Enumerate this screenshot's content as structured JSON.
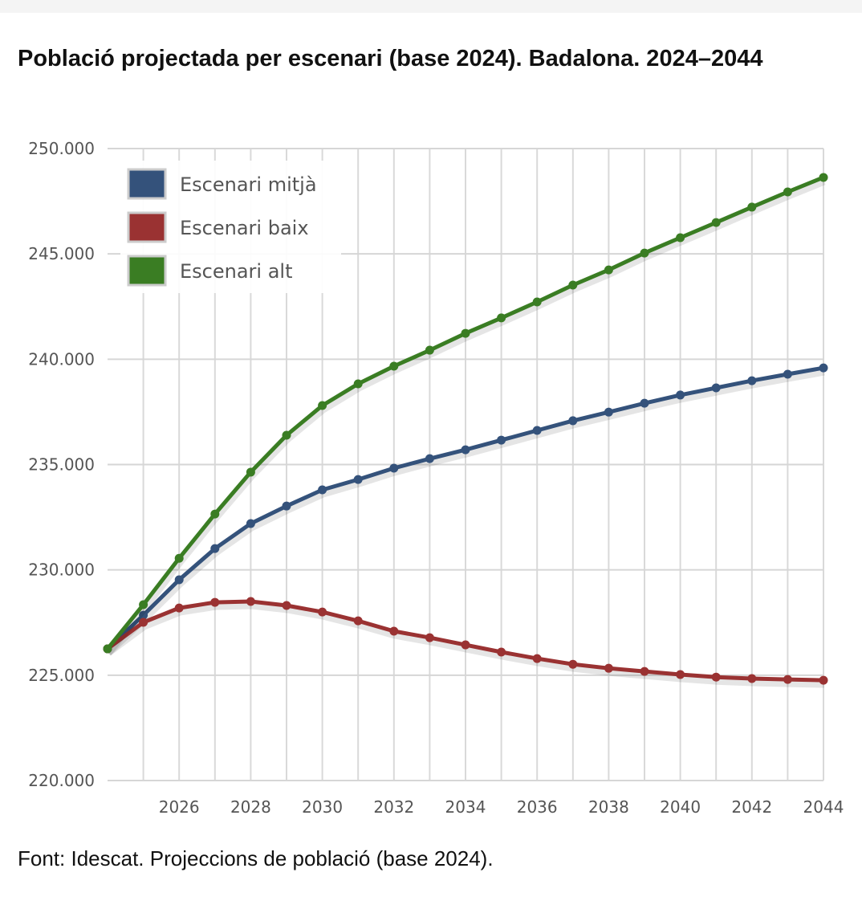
{
  "title": "Població projectada per escenari (base 2024). Badalona. 2024–2044",
  "source": "Font: Idescat. Projeccions de població (base 2024).",
  "chart_data": {
    "type": "line",
    "title": "Població projectada per escenari (base 2024). Badalona. 2024–2044",
    "xlabel": "",
    "ylabel": "",
    "x": [
      2024,
      2025,
      2026,
      2027,
      2028,
      2029,
      2030,
      2031,
      2032,
      2033,
      2034,
      2035,
      2036,
      2037,
      2038,
      2039,
      2040,
      2041,
      2042,
      2043,
      2044
    ],
    "xlim": [
      2024,
      2044
    ],
    "ylim": [
      220000,
      250000
    ],
    "x_ticks": [
      2026,
      2028,
      2030,
      2032,
      2034,
      2036,
      2038,
      2040,
      2042,
      2044
    ],
    "y_ticks": [
      220000,
      225000,
      230000,
      235000,
      240000,
      245000,
      250000
    ],
    "y_tick_labels": [
      "220.000",
      "225.000",
      "230.000",
      "235.000",
      "240.000",
      "245.000",
      "250.000"
    ],
    "grid": true,
    "legend_position": "top-left",
    "series": [
      {
        "name": "Escenari mitjà",
        "color": "#34527b",
        "values": [
          226250,
          227850,
          229530,
          231010,
          232200,
          233030,
          233800,
          234290,
          234830,
          235280,
          235700,
          236160,
          236620,
          237080,
          237490,
          237910,
          238300,
          238640,
          238980,
          239290,
          239590
        ]
      },
      {
        "name": "Escenari baix",
        "color": "#9a3232",
        "values": [
          226250,
          227510,
          228190,
          228460,
          228500,
          228310,
          228000,
          227580,
          227090,
          226780,
          226440,
          226100,
          225790,
          225520,
          225330,
          225180,
          225030,
          224910,
          224840,
          224800,
          224760
        ]
      },
      {
        "name": "Escenari alt",
        "color": "#3a7d23",
        "values": [
          226250,
          228350,
          230550,
          232650,
          234640,
          236390,
          237800,
          238830,
          239670,
          240430,
          241230,
          241960,
          242720,
          243520,
          244240,
          245040,
          245770,
          246490,
          247220,
          247940,
          248630
        ]
      }
    ]
  }
}
